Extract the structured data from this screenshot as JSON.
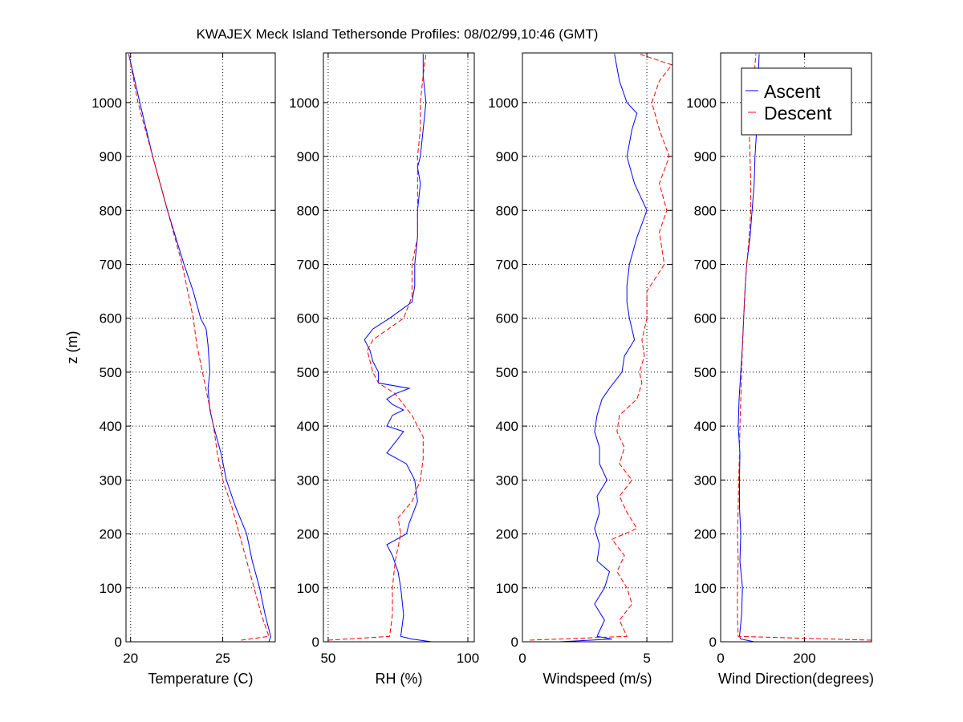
{
  "chart_data": {
    "title": "KWAJEX Meck Island Tethersonde Profiles: 08/02/99,10:46 (GMT)",
    "ylabel": "z (m)",
    "ylim": [
      0,
      1092
    ],
    "yticks": [
      0,
      100,
      200,
      300,
      400,
      500,
      600,
      700,
      800,
      900,
      1000
    ],
    "grid": true,
    "legend": {
      "placement": "top-right of last panel",
      "entries": [
        {
          "name": "Ascent",
          "color": "#0000ff",
          "style": "solid"
        },
        {
          "name": "Descent",
          "color": "#ff0000",
          "style": "dashed"
        }
      ]
    },
    "panels": [
      {
        "type": "line",
        "xlabel": "Temperature (C)",
        "xlim": [
          19.75,
          27.85
        ],
        "xticks": [
          20,
          25
        ],
        "xtick_labels": [
          "20",
          "25"
        ],
        "series": [
          {
            "name": "Ascent",
            "z": [
              0,
              10,
              50,
              100,
              150,
              200,
              250,
              300,
              350,
              400,
              430,
              470,
              500,
              550,
              580,
              600,
              650,
              700,
              800,
              900,
              1000,
              1090
            ],
            "values": [
              27.5,
              27.6,
              27.3,
              27.0,
              26.6,
              26.3,
              25.7,
              25.2,
              24.9,
              24.5,
              24.3,
              24.2,
              24.3,
              24.2,
              24.1,
              23.8,
              23.4,
              22.9,
              22.0,
              21.2,
              20.5,
              19.9
            ]
          },
          {
            "name": "Descent",
            "z": [
              3,
              10,
              50,
              100,
              150,
              200,
              250,
              300,
              350,
              400,
              450,
              500,
              550,
              600,
              700,
              800,
              900,
              1000,
              1090
            ],
            "values": [
              26.0,
              27.5,
              27.1,
              26.7,
              26.3,
              25.9,
              25.5,
              25.0,
              24.7,
              24.5,
              24.2,
              23.9,
              23.6,
              23.4,
              22.8,
              22.0,
              21.2,
              20.4,
              19.9
            ]
          }
        ]
      },
      {
        "type": "line",
        "xlabel": "RH (%)",
        "xlim": [
          48.3,
          102.3
        ],
        "xticks": [
          50,
          100
        ],
        "xtick_labels": [
          "50",
          "100"
        ],
        "series": [
          {
            "name": "Ascent",
            "z": [
              0,
              5,
              10,
              50,
              100,
              130,
              160,
              180,
              200,
              220,
              260,
              300,
              330,
              350,
              370,
              390,
              400,
              420,
              430,
              440,
              450,
              460,
              470,
              480,
              500,
              520,
              540,
              560,
              580,
              600,
              630,
              660,
              700,
              750,
              800,
              850,
              880,
              900,
              950,
              1000,
              1050,
              1090
            ],
            "values": [
              87,
              80,
              76,
              77,
              76,
              75,
              73,
              71,
              78,
              79,
              82,
              81,
              78,
              71,
              74,
              77,
              71,
              73,
              77,
              73,
              71,
              74,
              79,
              68,
              68,
              66,
              65,
              63,
              66,
              72,
              80,
              81,
              81,
              82,
              82,
              83,
              82,
              83,
              84,
              85,
              84,
              84
            ]
          },
          {
            "name": "Descent",
            "z": [
              3,
              10,
              50,
              100,
              150,
              200,
              230,
              260,
              300,
              340,
              380,
              400,
              420,
              440,
              460,
              480,
              500,
              540,
              560,
              600,
              640,
              700,
              750,
              800,
              850,
              900,
              950,
              1000,
              1050,
              1090
            ],
            "values": [
              50,
              72,
              73,
              73,
              74,
              76,
              75,
              80,
              83,
              84,
              84,
              82,
              80,
              77,
              74,
              68,
              66,
              64,
              66,
              77,
              80,
              80,
              82,
              82,
              82,
              82,
              83,
              83,
              84,
              85
            ]
          }
        ]
      },
      {
        "type": "line",
        "xlabel": "Windspeed (m/s)",
        "xlim": [
          0,
          6.03
        ],
        "xticks": [
          0,
          5
        ],
        "xtick_labels": [
          "0",
          "5"
        ],
        "series": [
          {
            "name": "Ascent",
            "z": [
              0,
              5,
              10,
              40,
              70,
              100,
              130,
              150,
              180,
              210,
              240,
              270,
              300,
              330,
              360,
              390,
              420,
              450,
              470,
              500,
              530,
              560,
              600,
              630,
              660,
              700,
              750,
              800,
              820,
              850,
              900,
              950,
              980,
              1000,
              1040,
              1090
            ],
            "values": [
              1.5,
              3.6,
              3.0,
              3.3,
              2.9,
              3.3,
              3.5,
              3.0,
              3.1,
              2.9,
              3.1,
              3.0,
              3.4,
              3.1,
              3.1,
              2.9,
              3.0,
              3.2,
              3.5,
              4.0,
              4.1,
              4.5,
              4.3,
              4.2,
              4.2,
              4.3,
              4.6,
              5.0,
              4.8,
              4.5,
              4.2,
              4.4,
              4.6,
              4.2,
              3.9,
              3.7
            ]
          },
          {
            "name": "Descent",
            "z": [
              3,
              10,
              40,
              70,
              100,
              130,
              160,
              190,
              210,
              240,
              270,
              300,
              330,
              360,
              390,
              420,
              450,
              480,
              500,
              530,
              560,
              600,
              650,
              700,
              730,
              760,
              800,
              850,
              900,
              950,
              1000,
              1040,
              1070,
              1090
            ],
            "values": [
              0.3,
              4.2,
              3.9,
              4.4,
              4.2,
              3.8,
              4.1,
              3.6,
              4.6,
              4.2,
              3.9,
              4.4,
              3.9,
              4.1,
              3.8,
              3.9,
              4.6,
              4.8,
              4.7,
              4.9,
              4.8,
              5.0,
              5.0,
              5.7,
              5.6,
              5.5,
              5.8,
              5.5,
              5.9,
              5.5,
              5.2,
              5.5,
              6.0,
              4.7
            ]
          }
        ]
      },
      {
        "type": "line",
        "xlabel": "Wind Direction(degrees)",
        "xlim": [
          0,
          360
        ],
        "xticks": [
          0,
          200
        ],
        "xtick_labels": [
          "0",
          "200"
        ],
        "series": [
          {
            "name": "Ascent",
            "z": [
              0,
              5,
              10,
              50,
              100,
              150,
              200,
              250,
              300,
              350,
              400,
              450,
              500,
              550,
              600,
              650,
              700,
              750,
              800,
              850,
              900,
              950,
              1000,
              1050,
              1090
            ],
            "values": [
              80,
              48,
              45,
              50,
              52,
              46,
              48,
              45,
              45,
              46,
              42,
              44,
              48,
              52,
              55,
              58,
              62,
              70,
              75,
              80,
              82,
              86,
              88,
              90,
              92
            ]
          },
          {
            "name": "Descent",
            "z": [
              3,
              10,
              50,
              100,
              150,
              200,
              250,
              300,
              350,
              400,
              450,
              500,
              550,
              600,
              650,
              700,
              750,
              800,
              850,
              900,
              950,
              1000,
              1050,
              1090
            ],
            "values": [
              360,
              42,
              40,
              40,
              42,
              40,
              42,
              43,
              45,
              46,
              48,
              50,
              52,
              55,
              58,
              62,
              68,
              72,
              72,
              70,
              68,
              72,
              80,
              84
            ]
          }
        ]
      }
    ]
  }
}
